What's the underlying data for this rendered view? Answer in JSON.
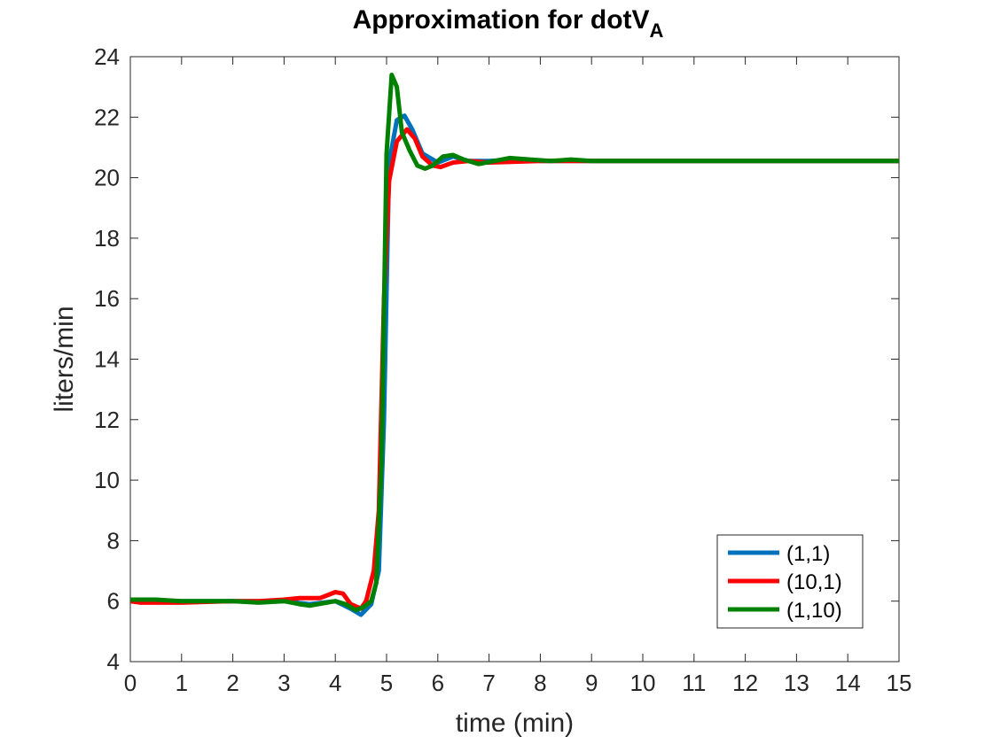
{
  "chart_data": {
    "type": "line",
    "title": "Approximation for dotV",
    "title_subscript": "A",
    "xlabel": "time (min)",
    "ylabel": "liters/min",
    "xlim": [
      0,
      15
    ],
    "ylim": [
      4,
      24
    ],
    "xticks": [
      0,
      1,
      2,
      3,
      4,
      5,
      6,
      7,
      8,
      9,
      10,
      11,
      12,
      13,
      14,
      15
    ],
    "yticks": [
      4,
      6,
      8,
      10,
      12,
      14,
      16,
      18,
      20,
      22,
      24
    ],
    "grid": false,
    "legend_position": "bottom-right",
    "series": [
      {
        "name": "(1,1)",
        "color": "#0072BD",
        "points": [
          [
            0,
            6.0
          ],
          [
            0.5,
            6.0
          ],
          [
            1,
            6.0
          ],
          [
            2,
            6.0
          ],
          [
            2.5,
            6.0
          ],
          [
            3,
            6.0
          ],
          [
            3.5,
            5.9
          ],
          [
            4,
            6.0
          ],
          [
            4.3,
            5.75
          ],
          [
            4.5,
            5.55
          ],
          [
            4.7,
            5.9
          ],
          [
            4.85,
            7.0
          ],
          [
            4.95,
            12.0
          ],
          [
            5.05,
            20.5
          ],
          [
            5.2,
            21.9
          ],
          [
            5.35,
            22.05
          ],
          [
            5.5,
            21.6
          ],
          [
            5.7,
            20.8
          ],
          [
            6.0,
            20.5
          ],
          [
            6.3,
            20.7
          ],
          [
            6.6,
            20.55
          ],
          [
            7.0,
            20.55
          ],
          [
            7.5,
            20.6
          ],
          [
            8,
            20.55
          ],
          [
            9,
            20.55
          ],
          [
            10,
            20.55
          ],
          [
            11,
            20.55
          ],
          [
            12,
            20.55
          ],
          [
            13,
            20.55
          ],
          [
            14,
            20.55
          ],
          [
            15,
            20.55
          ]
        ]
      },
      {
        "name": "(10,1)",
        "color": "#FF0000",
        "points": [
          [
            0,
            6.0
          ],
          [
            0.2,
            5.95
          ],
          [
            0.5,
            5.95
          ],
          [
            1,
            5.95
          ],
          [
            2,
            6.0
          ],
          [
            2.5,
            6.0
          ],
          [
            3,
            6.05
          ],
          [
            3.3,
            6.1
          ],
          [
            3.7,
            6.1
          ],
          [
            4.0,
            6.3
          ],
          [
            4.15,
            6.25
          ],
          [
            4.3,
            5.9
          ],
          [
            4.5,
            5.75
          ],
          [
            4.6,
            6.0
          ],
          [
            4.75,
            7.0
          ],
          [
            4.85,
            9.0
          ],
          [
            4.95,
            16.0
          ],
          [
            5.05,
            19.9
          ],
          [
            5.2,
            21.2
          ],
          [
            5.4,
            21.6
          ],
          [
            5.55,
            21.3
          ],
          [
            5.7,
            20.7
          ],
          [
            5.9,
            20.4
          ],
          [
            6.05,
            20.35
          ],
          [
            6.3,
            20.5
          ],
          [
            6.6,
            20.55
          ],
          [
            7.0,
            20.5
          ],
          [
            8,
            20.55
          ],
          [
            9,
            20.55
          ],
          [
            10,
            20.55
          ],
          [
            11,
            20.55
          ],
          [
            12,
            20.55
          ],
          [
            13,
            20.55
          ],
          [
            14,
            20.55
          ],
          [
            15,
            20.55
          ]
        ]
      },
      {
        "name": "(1,10)",
        "color": "#008000",
        "points": [
          [
            0,
            6.05
          ],
          [
            0.5,
            6.05
          ],
          [
            1,
            6.0
          ],
          [
            1.5,
            6.0
          ],
          [
            2,
            6.0
          ],
          [
            2.5,
            5.95
          ],
          [
            3,
            6.0
          ],
          [
            3.3,
            5.9
          ],
          [
            3.5,
            5.85
          ],
          [
            4.0,
            6.0
          ],
          [
            4.2,
            5.9
          ],
          [
            4.4,
            5.7
          ],
          [
            4.55,
            5.8
          ],
          [
            4.7,
            6.0
          ],
          [
            4.8,
            6.6
          ],
          [
            4.9,
            10.5
          ],
          [
            5.0,
            20.8
          ],
          [
            5.1,
            23.4
          ],
          [
            5.2,
            23.0
          ],
          [
            5.3,
            21.5
          ],
          [
            5.45,
            20.9
          ],
          [
            5.6,
            20.4
          ],
          [
            5.75,
            20.3
          ],
          [
            5.9,
            20.4
          ],
          [
            6.1,
            20.7
          ],
          [
            6.3,
            20.75
          ],
          [
            6.5,
            20.6
          ],
          [
            6.8,
            20.45
          ],
          [
            7.1,
            20.55
          ],
          [
            7.4,
            20.65
          ],
          [
            7.8,
            20.6
          ],
          [
            8.2,
            20.55
          ],
          [
            8.6,
            20.6
          ],
          [
            9.0,
            20.55
          ],
          [
            9.5,
            20.55
          ],
          [
            10,
            20.55
          ],
          [
            11,
            20.55
          ],
          [
            12,
            20.55
          ],
          [
            13,
            20.55
          ],
          [
            14,
            20.55
          ],
          [
            15,
            20.55
          ]
        ]
      }
    ]
  }
}
